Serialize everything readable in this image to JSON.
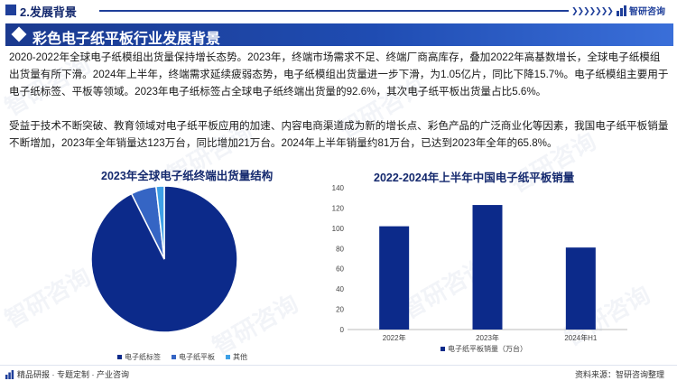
{
  "header": {
    "section_title": "2.发展背景",
    "brand_name": "智研咨询"
  },
  "banner": {
    "title": "彩色电子纸平板行业发展背景"
  },
  "paragraphs": [
    "2020-2022年全球电子纸模组出货量保持增长态势。2023年，终端市场需求不足、终端厂商高库存，叠加2022年高基数增长，全球电子纸模组出货量有所下滑。2024年上半年，终端需求延续疲弱态势，电子纸模组出货量进一步下滑，为1.05亿片，同比下降15.7%。电子纸模组主要用于电子纸标签、平板等领域。2023年电子纸标签占全球电子纸终端出货量的92.6%，其次电子纸平板出货量占比5.6%。",
    "受益于技术不断突破、教育领域对电子纸平板应用的加速、内容电商渠道成为新的增长点、彩色产品的广泛商业化等因素，我国电子纸平板销量不断增加，2023年全年销量达123万台，同比增加21万台。2024年上半年销量约81万台，已达到2023年全年的65.8%。"
  ],
  "chart_data": [
    {
      "type": "pie",
      "title": "2023年全球电子纸终端出货量结构",
      "categories": [
        "电子纸标签",
        "电子纸平板",
        "其他"
      ],
      "values": [
        92.6,
        5.6,
        1.8
      ],
      "colors": [
        "#0c2a8a",
        "#3565c4",
        "#3ea0e6"
      ],
      "legend_position": "bottom"
    },
    {
      "type": "bar",
      "title": "2022-2024年上半年中国电子纸平板销量",
      "categories": [
        "2022年",
        "2023年",
        "2024年H1"
      ],
      "series": [
        {
          "name": "电子纸平板销量（万台）",
          "values": [
            102,
            123,
            81
          ]
        }
      ],
      "ylim": [
        0,
        140
      ],
      "yticks": [
        0,
        20,
        40,
        60,
        80,
        100,
        120,
        140
      ],
      "grid": false,
      "color": "#0c2a8a",
      "legend_position": "bottom"
    }
  ],
  "footer": {
    "left_text": "精品研报 · 专题定制 · 产业咨询",
    "source_text": "资料来源：智研咨询整理"
  },
  "watermark": "智研咨询",
  "colors": {
    "primary": "#1f3f9a",
    "dark": "#14296e"
  }
}
